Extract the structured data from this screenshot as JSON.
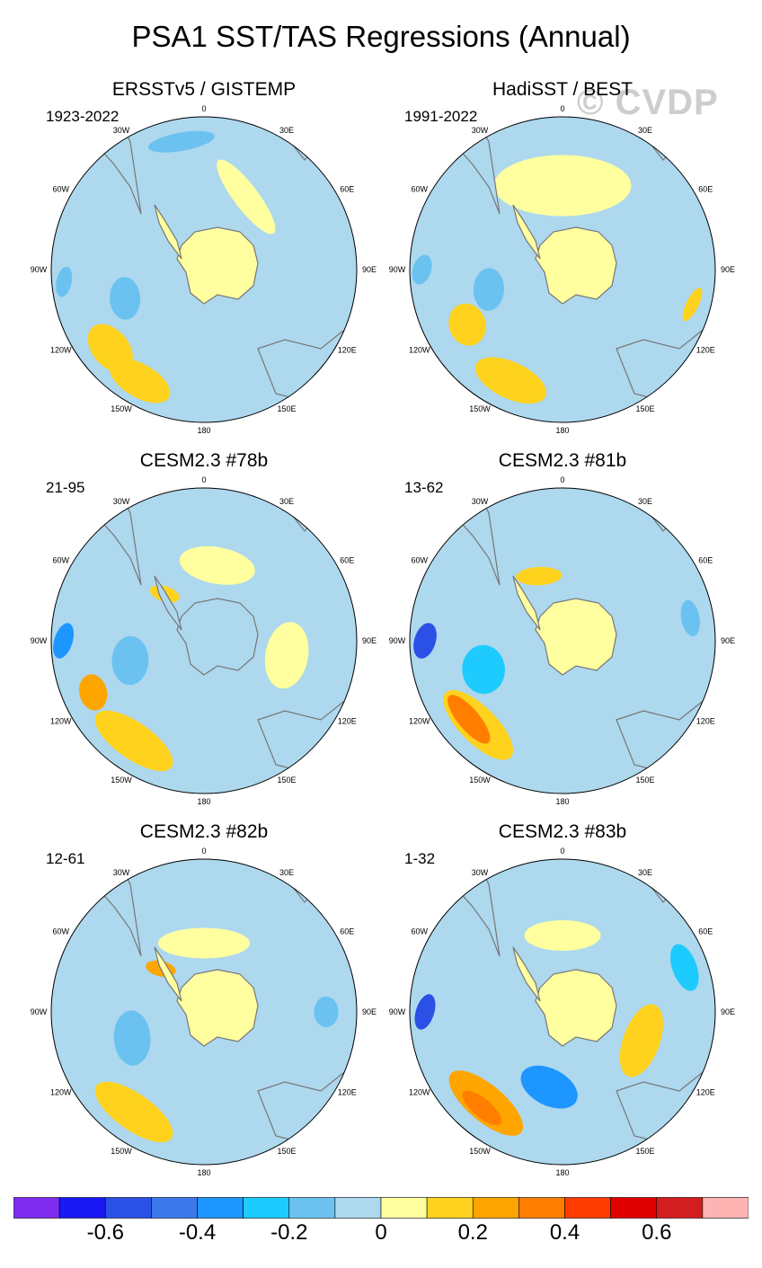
{
  "title": "PSA1 SST/TAS Regressions (Annual)",
  "watermark": "© CVDP",
  "colors": {
    "ocean_base": "#add8ee",
    "land": "#ffffa0",
    "coast": "#777777"
  },
  "longitude_labels": [
    "0",
    "30E",
    "60E",
    "90E",
    "120E",
    "150E",
    "180",
    "150W",
    "120W",
    "90W",
    "60W",
    "30W"
  ],
  "panels": [
    {
      "id": "ersst",
      "title": "ERSSTv5 / GISTEMP",
      "years": "1923-2022",
      "antarctica": "pos",
      "features": [
        {
          "lon": -150,
          "r": 0.84,
          "rx": 0.22,
          "ry": 0.11,
          "rot": 0.0,
          "c": "#ffd21e"
        },
        {
          "lon": -130,
          "r": 0.8,
          "rx": 0.18,
          "ry": 0.12,
          "rot": 0.0,
          "c": "#ffd21e"
        },
        {
          "lon": -110,
          "r": 0.55,
          "rx": 0.14,
          "ry": 0.1,
          "rot": 0.3,
          "c": "#6bc2f0"
        },
        {
          "lon": -95,
          "r": 0.92,
          "rx": 0.1,
          "ry": 0.05,
          "rot": 0.3,
          "c": "#6bc2f0"
        },
        {
          "lon": -10,
          "r": 0.85,
          "rx": 0.22,
          "ry": 0.06,
          "rot": 0.0,
          "c": "#6bc2f0"
        },
        {
          "lon": 30,
          "r": 0.55,
          "rx": 0.3,
          "ry": 0.08,
          "rot": 0.4,
          "c": "#ffffa0"
        }
      ]
    },
    {
      "id": "hadisst",
      "title": "HadiSST / BEST",
      "years": "1991-2022",
      "antarctica": "pos",
      "features": [
        {
          "lon": -155,
          "r": 0.8,
          "rx": 0.25,
          "ry": 0.12,
          "rot": 0.0,
          "c": "#ffd21e"
        },
        {
          "lon": -120,
          "r": 0.72,
          "rx": 0.14,
          "ry": 0.12,
          "rot": 0.2,
          "c": "#ffd21e"
        },
        {
          "lon": -105,
          "r": 0.5,
          "rx": 0.14,
          "ry": 0.1,
          "rot": 0.3,
          "c": "#6bc2f0"
        },
        {
          "lon": -90,
          "r": 0.92,
          "rx": 0.1,
          "ry": 0.06,
          "rot": 0.3,
          "c": "#6bc2f0"
        },
        {
          "lon": 0,
          "r": 0.55,
          "rx": 0.45,
          "ry": 0.2,
          "rot": 0.0,
          "c": "#ffffa0"
        },
        {
          "lon": 105,
          "r": 0.88,
          "rx": 0.12,
          "ry": 0.04,
          "rot": 0.2,
          "c": "#ffd21e"
        }
      ]
    },
    {
      "id": "cesm78",
      "title": "CESM2.3 #78b",
      "years": "21-95",
      "antarctica": "neg",
      "features": [
        {
          "lon": -145,
          "r": 0.8,
          "rx": 0.3,
          "ry": 0.12,
          "rot": 0.0,
          "c": "#ffd21e"
        },
        {
          "lon": -115,
          "r": 0.8,
          "rx": 0.12,
          "ry": 0.09,
          "rot": 0.2,
          "c": "#ffa500"
        },
        {
          "lon": -105,
          "r": 0.5,
          "rx": 0.16,
          "ry": 0.12,
          "rot": 0.3,
          "c": "#6bc2f0"
        },
        {
          "lon": -90,
          "r": 0.92,
          "rx": 0.12,
          "ry": 0.06,
          "rot": 0.3,
          "c": "#1e96ff"
        },
        {
          "lon": -40,
          "r": 0.4,
          "rx": 0.1,
          "ry": 0.05,
          "rot": 1.0,
          "c": "#ffd21e"
        },
        {
          "lon": 100,
          "r": 0.55,
          "rx": 0.22,
          "ry": 0.14,
          "rot": 0.0,
          "c": "#ffffa0"
        },
        {
          "lon": 10,
          "r": 0.5,
          "rx": 0.25,
          "ry": 0.12,
          "rot": 0.0,
          "c": "#ffffa0"
        }
      ]
    },
    {
      "id": "cesm81",
      "title": "CESM2.3 #81b",
      "years": "13-62",
      "antarctica": "pos",
      "features": [
        {
          "lon": -135,
          "r": 0.78,
          "rx": 0.3,
          "ry": 0.12,
          "rot": 0.0,
          "c": "#ffd21e"
        },
        {
          "lon": -130,
          "r": 0.8,
          "rx": 0.2,
          "ry": 0.07,
          "rot": 0.0,
          "c": "#ff7e00"
        },
        {
          "lon": -110,
          "r": 0.55,
          "rx": 0.16,
          "ry": 0.14,
          "rot": 0.3,
          "c": "#1ecbff"
        },
        {
          "lon": -90,
          "r": 0.9,
          "rx": 0.12,
          "ry": 0.07,
          "rot": 0.3,
          "c": "#2a50e6"
        },
        {
          "lon": -20,
          "r": 0.45,
          "rx": 0.15,
          "ry": 0.06,
          "rot": 0.3,
          "c": "#ffd21e"
        },
        {
          "lon": 80,
          "r": 0.85,
          "rx": 0.12,
          "ry": 0.06,
          "rot": 0.0,
          "c": "#6bc2f0"
        }
      ]
    },
    {
      "id": "cesm82",
      "title": "CESM2.3 #82b",
      "years": "12-61",
      "antarctica": "pos",
      "features": [
        {
          "lon": -145,
          "r": 0.8,
          "rx": 0.3,
          "ry": 0.12,
          "rot": 0.0,
          "c": "#ffd21e"
        },
        {
          "lon": -110,
          "r": 0.5,
          "rx": 0.18,
          "ry": 0.12,
          "rot": 0.3,
          "c": "#6bc2f0"
        },
        {
          "lon": -45,
          "r": 0.4,
          "rx": 0.1,
          "ry": 0.05,
          "rot": 1.0,
          "c": "#ffa500"
        },
        {
          "lon": 0,
          "r": 0.45,
          "rx": 0.3,
          "ry": 0.1,
          "rot": 0.0,
          "c": "#ffffa0"
        },
        {
          "lon": 90,
          "r": 0.8,
          "rx": 0.1,
          "ry": 0.08,
          "rot": 0.0,
          "c": "#6bc2f0"
        }
      ]
    },
    {
      "id": "cesm83",
      "title": "CESM2.3 #83b",
      "years": "1-32",
      "antarctica": "pos",
      "features": [
        {
          "lon": -140,
          "r": 0.78,
          "rx": 0.3,
          "ry": 0.12,
          "rot": 0.0,
          "c": "#ffa500"
        },
        {
          "lon": -140,
          "r": 0.82,
          "rx": 0.16,
          "ry": 0.06,
          "rot": 0.0,
          "c": "#ff7e00"
        },
        {
          "lon": -170,
          "r": 0.5,
          "rx": 0.2,
          "ry": 0.12,
          "rot": 0.3,
          "c": "#1e96ff"
        },
        {
          "lon": 110,
          "r": 0.55,
          "rx": 0.25,
          "ry": 0.12,
          "rot": 0.0,
          "c": "#ffd21e"
        },
        {
          "lon": 70,
          "r": 0.85,
          "rx": 0.16,
          "ry": 0.08,
          "rot": 0.0,
          "c": "#1ecbff"
        },
        {
          "lon": -90,
          "r": 0.9,
          "rx": 0.12,
          "ry": 0.06,
          "rot": 0.3,
          "c": "#2a50e6"
        },
        {
          "lon": 0,
          "r": 0.5,
          "rx": 0.25,
          "ry": 0.1,
          "rot": 0.0,
          "c": "#ffffa0"
        }
      ]
    }
  ],
  "colorbar": {
    "colors": [
      "#7d2cf0",
      "#1919f5",
      "#2a50e6",
      "#3c78ec",
      "#1e96ff",
      "#1ecbff",
      "#6bc2f0",
      "#add8ee",
      "#ffffa0",
      "#ffd21e",
      "#ffa500",
      "#ff7e00",
      "#ff3c00",
      "#e10000",
      "#d21e1e",
      "#ffb4b4"
    ],
    "labels": [
      "-0.6",
      "-0.4",
      "-0.2",
      "0",
      "0.2",
      "0.4",
      "0.6"
    ]
  }
}
